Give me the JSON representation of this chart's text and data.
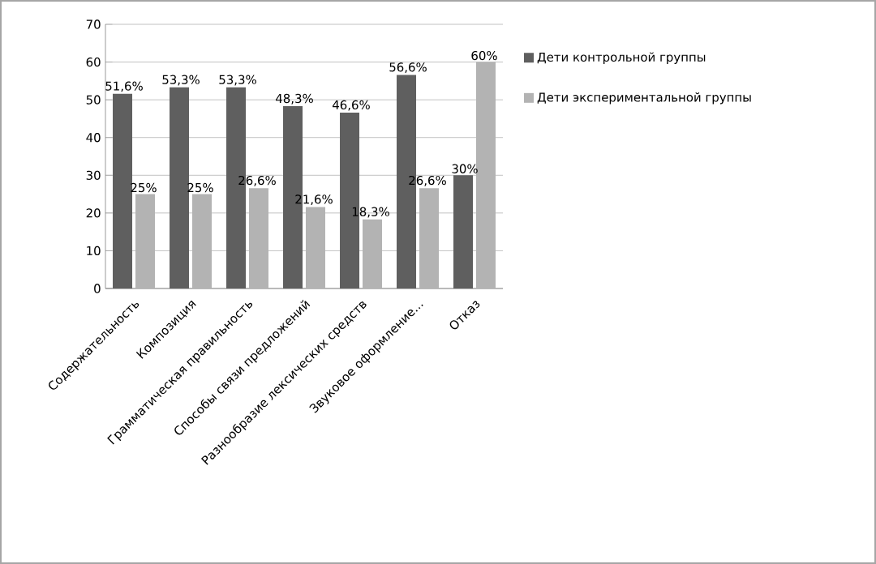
{
  "chart_data": {
    "type": "bar",
    "categories": [
      "Содержательность",
      "Композиция",
      "Грамматическая правильность",
      "Способы связи предложений",
      "Разнообразие лексических средств",
      "Звуковое оформление...",
      "Отказ"
    ],
    "series": [
      {
        "name": "Дети контрольной группы",
        "color": "#5f5f5f",
        "values": [
          51.6,
          53.3,
          53.3,
          48.3,
          46.6,
          56.6,
          30
        ],
        "value_labels": [
          "51,6%",
          "53,3%",
          "53,3%",
          "48,3%",
          "46,6%",
          "56,6%",
          "30%"
        ]
      },
      {
        "name": "Дети экспериментальной группы",
        "color": "#b3b3b3",
        "values": [
          25,
          25,
          26.6,
          21.6,
          18.3,
          26.6,
          60
        ],
        "value_labels": [
          "25%",
          "25%",
          "26,6%",
          "21,6%",
          "18,3%",
          "26,6%",
          "60%"
        ]
      }
    ],
    "ylim": [
      0,
      70
    ],
    "yticks": [
      0,
      10,
      20,
      30,
      40,
      50,
      60,
      70
    ],
    "grid": "y",
    "legend": "right"
  }
}
